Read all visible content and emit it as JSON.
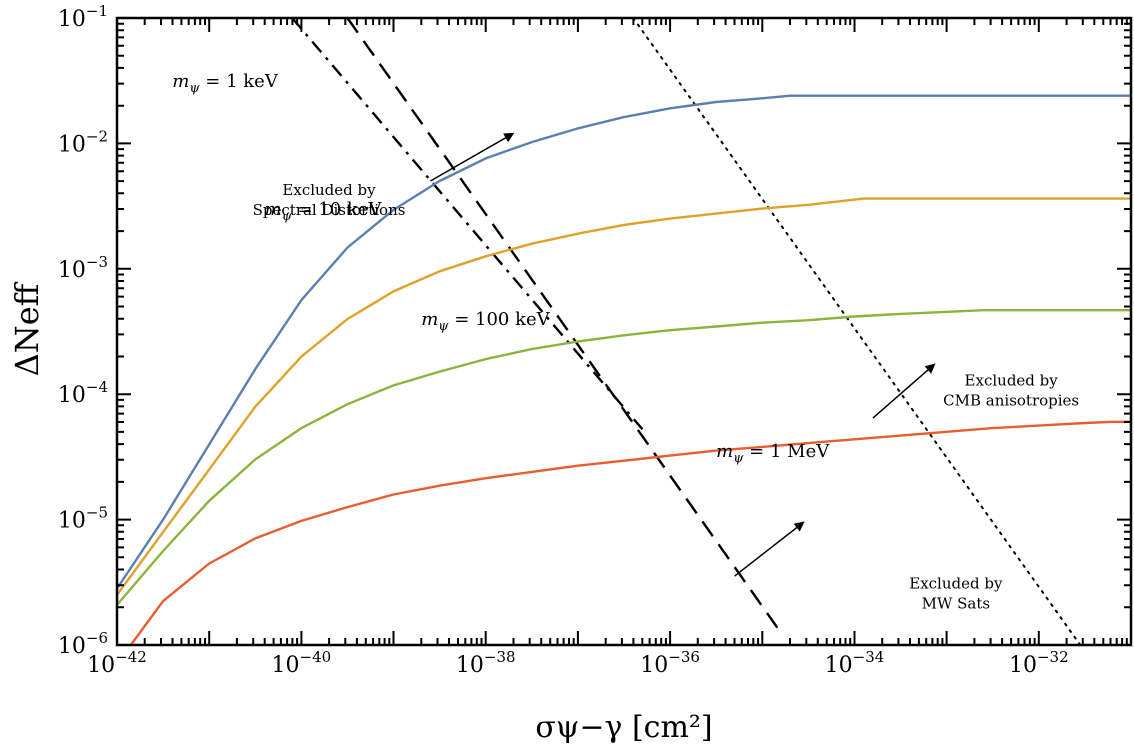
{
  "chart_data": {
    "type": "line",
    "x_scale": "log",
    "y_scale": "log",
    "xlim_log10": [
      -42,
      -31
    ],
    "ylim_log10": [
      -6,
      -1
    ],
    "xlabel": "σψ−γ  [cm²]",
    "ylabel": "ΔNeff",
    "x_ticks": [
      {
        "log10": -42,
        "base": "10",
        "exp": "−42"
      },
      {
        "log10": -40,
        "base": "10",
        "exp": "−40"
      },
      {
        "log10": -38,
        "base": "10",
        "exp": "−38"
      },
      {
        "log10": -36,
        "base": "10",
        "exp": "−36"
      },
      {
        "log10": -34,
        "base": "10",
        "exp": "−34"
      },
      {
        "log10": -32,
        "base": "10",
        "exp": "−32"
      }
    ],
    "y_ticks": [
      {
        "log10": -1,
        "base": "10",
        "exp": "−1"
      },
      {
        "log10": -2,
        "base": "10",
        "exp": "−2"
      },
      {
        "log10": -3,
        "base": "10",
        "exp": "−3"
      },
      {
        "log10": -4,
        "base": "10",
        "exp": "−4"
      },
      {
        "log10": -5,
        "base": "10",
        "exp": "−5"
      },
      {
        "log10": -6,
        "base": "10",
        "exp": "−6"
      }
    ],
    "series": [
      {
        "name": "mψ = 1 keV",
        "label_main": "m",
        "label_sub": "ψ",
        "label_rest": " = 1 keV",
        "color": "#5b7fb1",
        "label_log10": [
          -41.4,
          -1.55
        ],
        "points_log10": [
          [
            -42,
            -5.55
          ],
          [
            -41.5,
            -5.0
          ],
          [
            -41,
            -4.4
          ],
          [
            -40.5,
            -3.8
          ],
          [
            -40,
            -3.25
          ],
          [
            -39.5,
            -2.83
          ],
          [
            -39,
            -2.53
          ],
          [
            -38.5,
            -2.3
          ],
          [
            -38,
            -2.12
          ],
          [
            -37.5,
            -1.99
          ],
          [
            -37,
            -1.88
          ],
          [
            -36.5,
            -1.79
          ],
          [
            -36,
            -1.72
          ],
          [
            -35.5,
            -1.67
          ],
          [
            -35,
            -1.64
          ],
          [
            -34.7,
            -1.62
          ],
          [
            -31,
            -1.62
          ]
        ]
      },
      {
        "name": "mψ = 10 keV",
        "label_main": "m",
        "label_sub": "ψ",
        "label_rest": " = 10 keV",
        "color": "#e0a02a",
        "label_log10": [
          -40.4,
          -2.57
        ],
        "points_log10": [
          [
            -42,
            -5.6
          ],
          [
            -41.5,
            -5.1
          ],
          [
            -41,
            -4.6
          ],
          [
            -40.5,
            -4.1
          ],
          [
            -40,
            -3.7
          ],
          [
            -39.5,
            -3.4
          ],
          [
            -39,
            -3.18
          ],
          [
            -38.5,
            -3.02
          ],
          [
            -38,
            -2.9
          ],
          [
            -37.5,
            -2.8
          ],
          [
            -37,
            -2.72
          ],
          [
            -36.5,
            -2.65
          ],
          [
            -36,
            -2.6
          ],
          [
            -35.5,
            -2.56
          ],
          [
            -35,
            -2.52
          ],
          [
            -34.5,
            -2.49
          ],
          [
            -33.9,
            -2.44
          ],
          [
            -31,
            -2.44
          ]
        ]
      },
      {
        "name": "mψ = 100 keV",
        "label_main": "m",
        "label_sub": "ψ",
        "label_rest": " = 100 keV",
        "color": "#8ab43c",
        "label_log10": [
          -38.7,
          -3.45
        ],
        "points_log10": [
          [
            -42,
            -5.68
          ],
          [
            -41.5,
            -5.25
          ],
          [
            -41,
            -4.85
          ],
          [
            -40.5,
            -4.52
          ],
          [
            -40,
            -4.27
          ],
          [
            -39.5,
            -4.08
          ],
          [
            -39,
            -3.93
          ],
          [
            -38.5,
            -3.82
          ],
          [
            -38,
            -3.72
          ],
          [
            -37.5,
            -3.64
          ],
          [
            -37,
            -3.58
          ],
          [
            -36.5,
            -3.53
          ],
          [
            -36,
            -3.49
          ],
          [
            -35.5,
            -3.46
          ],
          [
            -35,
            -3.43
          ],
          [
            -34.5,
            -3.41
          ],
          [
            -34,
            -3.38
          ],
          [
            -33.5,
            -3.36
          ],
          [
            -32.6,
            -3.33
          ],
          [
            -31,
            -3.33
          ]
        ]
      },
      {
        "name": "mψ = 1 MeV",
        "label_main": "m",
        "label_sub": "ψ",
        "label_rest": " = 1 MeV",
        "color": "#e85d2f",
        "label_log10": [
          -35.5,
          -4.5
        ],
        "points_log10": [
          [
            -41.85,
            -6.0
          ],
          [
            -41.5,
            -5.65
          ],
          [
            -41,
            -5.35
          ],
          [
            -40.5,
            -5.15
          ],
          [
            -40,
            -5.01
          ],
          [
            -39.5,
            -4.9
          ],
          [
            -39,
            -4.8
          ],
          [
            -38.5,
            -4.73
          ],
          [
            -38,
            -4.67
          ],
          [
            -37.5,
            -4.62
          ],
          [
            -37,
            -4.57
          ],
          [
            -36.5,
            -4.53
          ],
          [
            -36,
            -4.49
          ],
          [
            -35.5,
            -4.45
          ],
          [
            -35,
            -4.42
          ],
          [
            -34.5,
            -4.39
          ],
          [
            -34,
            -4.36
          ],
          [
            -33.5,
            -4.33
          ],
          [
            -33,
            -4.3
          ],
          [
            -32.5,
            -4.27
          ],
          [
            -32,
            -4.25
          ],
          [
            -31.5,
            -4.23
          ],
          [
            -31.2,
            -4.22
          ],
          [
            -31,
            -4.22
          ]
        ]
      }
    ],
    "bounds": [
      {
        "name": "spectral-distortions",
        "style": "dashdot",
        "points_log10": [
          [
            -40.1,
            -1.0
          ],
          [
            -36.3,
            -4.28
          ]
        ]
      },
      {
        "name": "mw-sats",
        "style": "dashed",
        "points_log10": [
          [
            -39.5,
            -1.0
          ],
          [
            -34.8,
            -5.9
          ]
        ]
      },
      {
        "name": "cmb-anisotropies",
        "style": "dotted",
        "points_log10": [
          [
            -36.4,
            -1.0
          ],
          [
            -31.55,
            -6.0
          ]
        ]
      }
    ],
    "annotations": [
      {
        "name": "spectral-distortions",
        "lines": [
          "Excluded by",
          "Spectral Distortions"
        ],
        "text_log10": [
          -39.7,
          -2.41
        ],
        "arrow_log10": [
          [
            -38.6,
            -2.3
          ],
          [
            -37.7,
            -1.92
          ]
        ]
      },
      {
        "name": "cmb-anisotropies",
        "lines": [
          "Excluded by",
          "CMB anisotropies"
        ],
        "text_log10": [
          -32.3,
          -3.93
        ],
        "arrow_log10": [
          [
            -33.8,
            -4.19
          ],
          [
            -33.13,
            -3.76
          ]
        ]
      },
      {
        "name": "mw-sats",
        "lines": [
          "Excluded by",
          "MW Sats"
        ],
        "text_log10": [
          -32.9,
          -5.55
        ],
        "arrow_log10": [
          [
            -35.3,
            -5.45
          ],
          [
            -34.55,
            -5.02
          ]
        ]
      }
    ]
  }
}
